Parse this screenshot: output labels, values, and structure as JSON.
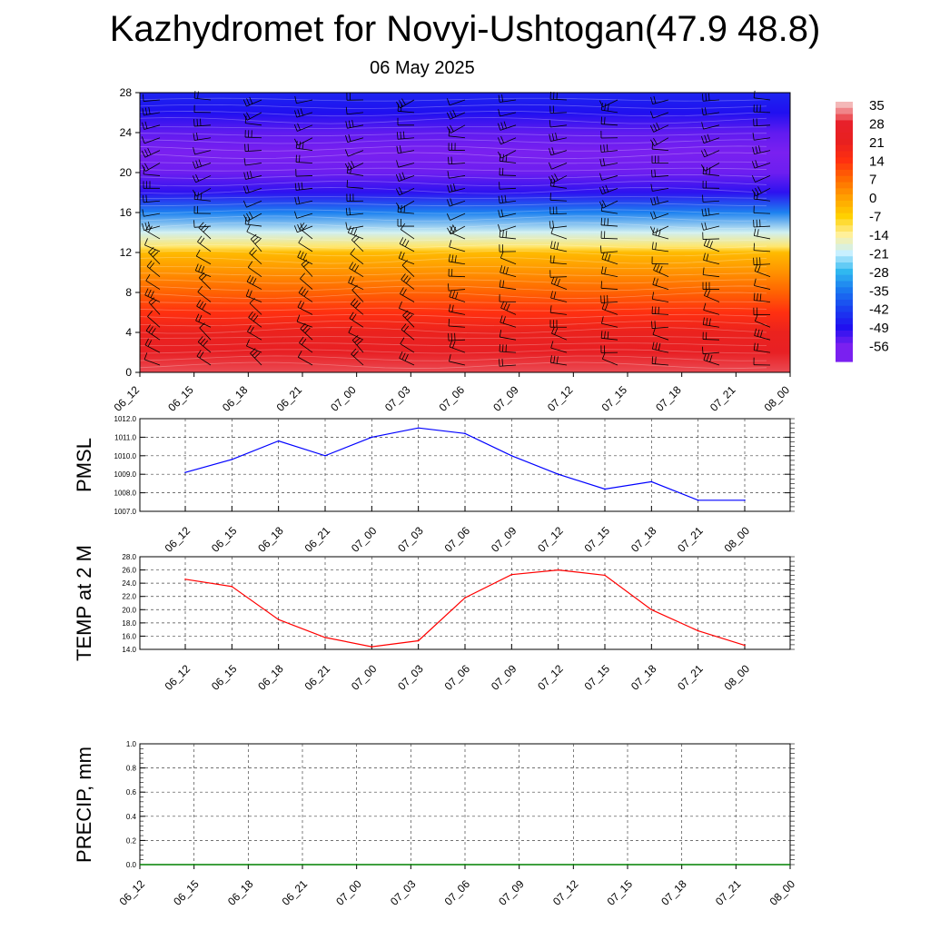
{
  "title": "Kazhydromet for Novyi-Ushtogan(47.9 48.8)",
  "subtitle": "06 May 2025",
  "time_labels": [
    "06_12",
    "06_15",
    "06_18",
    "06_21",
    "07_00",
    "07_03",
    "07_06",
    "07_09",
    "07_12",
    "07_15",
    "07_18",
    "07_21",
    "08_00"
  ],
  "colors": {
    "pmsl_line": "#0000ff",
    "temp_line": "#ff0000",
    "precip_line": "#008000"
  },
  "colorbar": {
    "labels": [
      "35",
      "28",
      "21",
      "14",
      "7",
      "0",
      "-7",
      "-14",
      "-21",
      "-28",
      "-35",
      "-42",
      "-49",
      "-56"
    ],
    "stops": [
      "#f4b8b8",
      "#e8202a",
      "#e82020",
      "#ff3010",
      "#ff6a00",
      "#ffa000",
      "#ffd000",
      "#fff09a",
      "#c8f0ff",
      "#30b8f0",
      "#1a78f0",
      "#1a40f0",
      "#2010f0",
      "#7a20f0"
    ]
  },
  "chart_data": [
    {
      "type": "heatmap",
      "name": "cross_section",
      "xlabel": "",
      "ylabel": "",
      "x": [
        "06_12",
        "06_15",
        "06_18",
        "06_21",
        "07_00",
        "07_03",
        "07_06",
        "07_09",
        "07_12",
        "07_15",
        "07_18",
        "07_21",
        "08_00"
      ],
      "y_ticks": [
        "0",
        "4",
        "8",
        "12",
        "16",
        "20",
        "24",
        "28"
      ],
      "ylim": [
        0,
        28
      ],
      "value_range": [
        -56,
        35
      ],
      "profile": [
        {
          "height": 0,
          "value": 30
        },
        {
          "height": 2,
          "value": 24
        },
        {
          "height": 4,
          "value": 20
        },
        {
          "height": 6,
          "value": 14
        },
        {
          "height": 8,
          "value": 8
        },
        {
          "height": 10,
          "value": 2
        },
        {
          "height": 12,
          "value": -4
        },
        {
          "height": 12.6,
          "value": -12
        },
        {
          "height": 14,
          "value": -20
        },
        {
          "height": 16,
          "value": -34
        },
        {
          "height": 18,
          "value": -50
        },
        {
          "height": 20,
          "value": -55
        },
        {
          "height": 22,
          "value": -57
        },
        {
          "height": 24,
          "value": -54
        },
        {
          "height": 26,
          "value": -49
        },
        {
          "height": 28,
          "value": -46
        }
      ]
    },
    {
      "type": "line",
      "name": "pmsl",
      "ylabel": "PMSL",
      "categories": [
        "06_12",
        "06_15",
        "06_18",
        "06_21",
        "07_00",
        "07_03",
        "07_06",
        "07_09",
        "07_12",
        "07_15",
        "07_18",
        "07_21",
        "08_00"
      ],
      "values": [
        1009.1,
        1009.8,
        1010.8,
        1010.0,
        1011.0,
        1011.5,
        1011.2,
        1010.0,
        1009.0,
        1008.2,
        1008.6,
        1007.6,
        1007.6
      ],
      "ylim": [
        1007.0,
        1012.0
      ],
      "y_ticks": [
        "1007.0",
        "1008.0",
        "1009.0",
        "1010.0",
        "1011.0",
        "1012.0"
      ],
      "grid": true
    },
    {
      "type": "line",
      "name": "temp",
      "ylabel": "TEMP at 2 M",
      "categories": [
        "06_12",
        "06_15",
        "06_18",
        "06_21",
        "07_00",
        "07_03",
        "07_06",
        "07_09",
        "07_12",
        "07_15",
        "07_18",
        "07_21",
        "08_00"
      ],
      "values": [
        24.6,
        23.5,
        18.5,
        15.8,
        14.4,
        15.3,
        21.8,
        25.3,
        26.0,
        25.2,
        20.0,
        16.8,
        14.6
      ],
      "ylim": [
        14.0,
        28.0
      ],
      "y_ticks": [
        "14.0",
        "16.0",
        "18.0",
        "20.0",
        "22.0",
        "24.0",
        "26.0",
        "28.0"
      ],
      "grid": true
    },
    {
      "type": "line",
      "name": "precip",
      "ylabel": "PRECIP, mm",
      "categories": [
        "06_12",
        "06_15",
        "06_18",
        "06_21",
        "07_00",
        "07_03",
        "07_06",
        "07_09",
        "07_12",
        "07_15",
        "07_18",
        "07_21",
        "08_00"
      ],
      "values": [
        0,
        0,
        0,
        0,
        0,
        0,
        0,
        0,
        0,
        0,
        0,
        0,
        0
      ],
      "ylim": [
        0.0,
        1.0
      ],
      "y_ticks": [
        "0.0",
        "0.2",
        "0.4",
        "0.6",
        "0.8",
        "1.0"
      ],
      "grid": true
    }
  ]
}
